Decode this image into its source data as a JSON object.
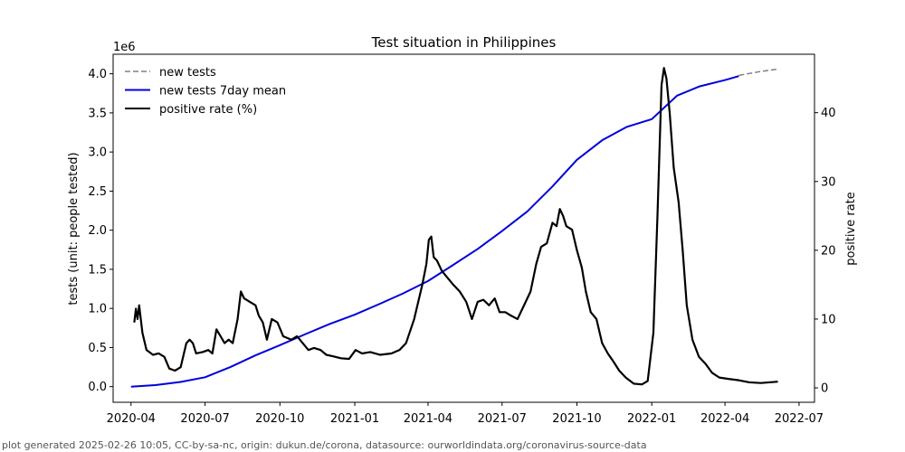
{
  "chart_data": {
    "type": "line",
    "title": "Test situation in Philippines",
    "ylabel": "tests (unit: people tested)",
    "y2label": "positive rate",
    "y_offset_label": "1e6",
    "ylim": [
      -0.2,
      4.25
    ],
    "y2lim": [
      -2.1,
      48.5
    ],
    "xlim": [
      "2020-03-10",
      "2022-07-20"
    ],
    "x_ticks": [
      "2020-04",
      "2020-07",
      "2020-10",
      "2021-01",
      "2021-04",
      "2021-07",
      "2021-10",
      "2022-01",
      "2022-04",
      "2022-07"
    ],
    "y_ticks": [
      "0.0",
      "0.5",
      "1.0",
      "1.5",
      "2.0",
      "2.5",
      "3.0",
      "3.5",
      "4.0"
    ],
    "y2_ticks": [
      "0",
      "10",
      "20",
      "30",
      "40"
    ],
    "legend_position": "top-left",
    "grid": false,
    "series": [
      {
        "name": "new tests",
        "axis": "left",
        "color": "#808080",
        "style": "dashed",
        "points": [
          [
            "2022-04-18",
            3.98
          ],
          [
            "2022-05-15",
            4.03
          ],
          [
            "2022-06-05",
            4.06
          ]
        ]
      },
      {
        "name": "new tests 7day mean",
        "axis": "left",
        "color": "#0000dd",
        "style": "solid",
        "points": [
          [
            "2020-04-01",
            0.0
          ],
          [
            "2020-05-01",
            0.02
          ],
          [
            "2020-06-01",
            0.06
          ],
          [
            "2020-07-01",
            0.12
          ],
          [
            "2020-08-01",
            0.25
          ],
          [
            "2020-09-01",
            0.4
          ],
          [
            "2020-10-01",
            0.53
          ],
          [
            "2020-11-01",
            0.67
          ],
          [
            "2020-12-01",
            0.8
          ],
          [
            "2021-01-01",
            0.92
          ],
          [
            "2021-02-01",
            1.06
          ],
          [
            "2021-03-01",
            1.19
          ],
          [
            "2021-04-01",
            1.35
          ],
          [
            "2021-05-01",
            1.55
          ],
          [
            "2021-06-01",
            1.76
          ],
          [
            "2021-07-01",
            1.99
          ],
          [
            "2021-08-01",
            2.24
          ],
          [
            "2021-09-01",
            2.56
          ],
          [
            "2021-10-01",
            2.9
          ],
          [
            "2021-11-01",
            3.15
          ],
          [
            "2021-12-01",
            3.32
          ],
          [
            "2022-01-01",
            3.42
          ],
          [
            "2022-02-01",
            3.72
          ],
          [
            "2022-03-01",
            3.84
          ],
          [
            "2022-04-01",
            3.92
          ],
          [
            "2022-04-18",
            3.97
          ]
        ]
      },
      {
        "name": "positive rate (%)",
        "axis": "right",
        "color": "#000000",
        "style": "solid",
        "points": [
          [
            "2020-04-05",
            9.5
          ],
          [
            "2020-04-07",
            11.5
          ],
          [
            "2020-04-09",
            10.0
          ],
          [
            "2020-04-11",
            12.0
          ],
          [
            "2020-04-15",
            8.0
          ],
          [
            "2020-04-20",
            5.5
          ],
          [
            "2020-04-28",
            4.8
          ],
          [
            "2020-05-05",
            5.0
          ],
          [
            "2020-05-12",
            4.5
          ],
          [
            "2020-05-18",
            2.8
          ],
          [
            "2020-05-25",
            2.5
          ],
          [
            "2020-06-01",
            3.0
          ],
          [
            "2020-06-08",
            6.5
          ],
          [
            "2020-06-12",
            7.0
          ],
          [
            "2020-06-16",
            6.5
          ],
          [
            "2020-06-20",
            5.0
          ],
          [
            "2020-06-28",
            5.2
          ],
          [
            "2020-07-05",
            5.5
          ],
          [
            "2020-07-10",
            5.0
          ],
          [
            "2020-07-15",
            8.5
          ],
          [
            "2020-07-20",
            7.5
          ],
          [
            "2020-07-25",
            6.5
          ],
          [
            "2020-07-30",
            7.0
          ],
          [
            "2020-08-04",
            6.5
          ],
          [
            "2020-08-10",
            10.0
          ],
          [
            "2020-08-14",
            14.0
          ],
          [
            "2020-08-18",
            13.0
          ],
          [
            "2020-08-25",
            12.5
          ],
          [
            "2020-09-01",
            12.0
          ],
          [
            "2020-09-05",
            10.5
          ],
          [
            "2020-09-10",
            9.5
          ],
          [
            "2020-09-15",
            7.0
          ],
          [
            "2020-09-21",
            10.0
          ],
          [
            "2020-09-28",
            9.5
          ],
          [
            "2020-10-05",
            7.5
          ],
          [
            "2020-10-15",
            7.0
          ],
          [
            "2020-10-22",
            7.5
          ],
          [
            "2020-10-29",
            6.5
          ],
          [
            "2020-11-05",
            5.5
          ],
          [
            "2020-11-12",
            5.8
          ],
          [
            "2020-11-20",
            5.5
          ],
          [
            "2020-11-27",
            4.8
          ],
          [
            "2020-12-05",
            4.6
          ],
          [
            "2020-12-15",
            4.3
          ],
          [
            "2020-12-25",
            4.2
          ],
          [
            "2021-01-02",
            5.5
          ],
          [
            "2021-01-10",
            5.0
          ],
          [
            "2021-01-20",
            5.2
          ],
          [
            "2021-02-01",
            4.8
          ],
          [
            "2021-02-15",
            5.0
          ],
          [
            "2021-02-25",
            5.5
          ],
          [
            "2021-03-05",
            6.5
          ],
          [
            "2021-03-15",
            10.0
          ],
          [
            "2021-03-25",
            15.0
          ],
          [
            "2021-03-30",
            18.0
          ],
          [
            "2021-04-02",
            21.5
          ],
          [
            "2021-04-05",
            22.0
          ],
          [
            "2021-04-08",
            19.0
          ],
          [
            "2021-04-12",
            18.5
          ],
          [
            "2021-04-18",
            17.0
          ],
          [
            "2021-04-25",
            16.0
          ],
          [
            "2021-05-02",
            15.0
          ],
          [
            "2021-05-10",
            14.0
          ],
          [
            "2021-05-18",
            12.5
          ],
          [
            "2021-05-25",
            10.0
          ],
          [
            "2021-06-01",
            12.5
          ],
          [
            "2021-06-08",
            12.8
          ],
          [
            "2021-06-15",
            12.0
          ],
          [
            "2021-06-22",
            13.0
          ],
          [
            "2021-06-28",
            11.0
          ],
          [
            "2021-07-05",
            11.0
          ],
          [
            "2021-07-12",
            10.5
          ],
          [
            "2021-07-20",
            10.0
          ],
          [
            "2021-07-28",
            12.0
          ],
          [
            "2021-08-05",
            14.0
          ],
          [
            "2021-08-12",
            18.0
          ],
          [
            "2021-08-18",
            20.5
          ],
          [
            "2021-08-25",
            21.0
          ],
          [
            "2021-09-01",
            24.0
          ],
          [
            "2021-09-06",
            23.5
          ],
          [
            "2021-09-10",
            26.0
          ],
          [
            "2021-09-14",
            25.0
          ],
          [
            "2021-09-18",
            23.5
          ],
          [
            "2021-09-25",
            23.0
          ],
          [
            "2021-10-01",
            20.0
          ],
          [
            "2021-10-07",
            17.5
          ],
          [
            "2021-10-12",
            14.0
          ],
          [
            "2021-10-18",
            11.0
          ],
          [
            "2021-10-25",
            10.0
          ],
          [
            "2021-11-01",
            6.5
          ],
          [
            "2021-11-08",
            5.0
          ],
          [
            "2021-11-15",
            3.8
          ],
          [
            "2021-11-22",
            2.5
          ],
          [
            "2021-11-30",
            1.5
          ],
          [
            "2021-12-10",
            0.6
          ],
          [
            "2021-12-20",
            0.5
          ],
          [
            "2021-12-27",
            1.0
          ],
          [
            "2022-01-03",
            8.0
          ],
          [
            "2022-01-08",
            25.0
          ],
          [
            "2022-01-13",
            44.0
          ],
          [
            "2022-01-16",
            46.5
          ],
          [
            "2022-01-19",
            45.0
          ],
          [
            "2022-01-23",
            40.0
          ],
          [
            "2022-01-28",
            32.0
          ],
          [
            "2022-02-03",
            27.0
          ],
          [
            "2022-02-08",
            20.0
          ],
          [
            "2022-02-13",
            12.0
          ],
          [
            "2022-02-20",
            7.0
          ],
          [
            "2022-02-28",
            4.5
          ],
          [
            "2022-03-08",
            3.5
          ],
          [
            "2022-03-16",
            2.2
          ],
          [
            "2022-03-25",
            1.5
          ],
          [
            "2022-04-05",
            1.3
          ],
          [
            "2022-04-18",
            1.1
          ],
          [
            "2022-05-01",
            0.8
          ],
          [
            "2022-05-15",
            0.7
          ],
          [
            "2022-06-05",
            0.9
          ]
        ]
      }
    ]
  },
  "footer": "plot generated 2025-02-26 10:05, CC-by-sa-nc, origin: dukun.de/corona, datasource: ourworldindata.org/coronavirus-source-data"
}
